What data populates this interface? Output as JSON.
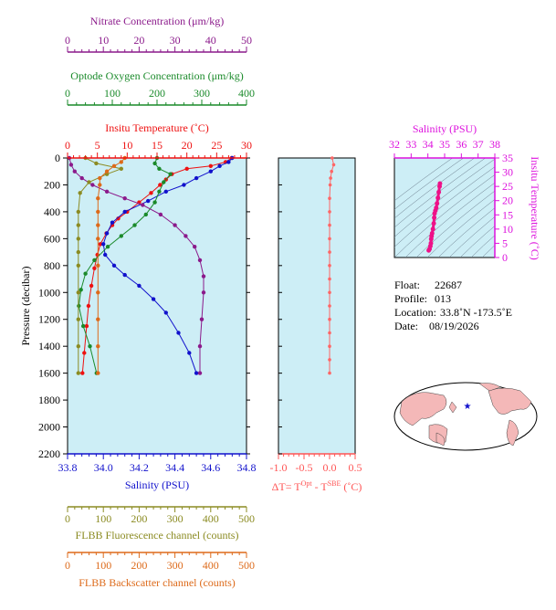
{
  "chart_data": [
    {
      "type": "line",
      "panel": "main-profile",
      "ylabel": "Pressure (decibar)",
      "ylim": [
        2200,
        0
      ],
      "yticks": [
        0,
        200,
        400,
        600,
        800,
        1000,
        1200,
        1400,
        1600,
        1800,
        2000,
        2200
      ],
      "background": "#cdeef6",
      "axes": {
        "nitrate": {
          "label": "Nitrate Concentration (μm/kg)",
          "range": [
            0,
            50
          ],
          "ticks": [
            0,
            10,
            20,
            30,
            40,
            50
          ],
          "color": "#8b1a8b"
        },
        "oxygen": {
          "label": "Optode Oxygen Concentration (μm/kg)",
          "range": [
            0,
            400
          ],
          "ticks": [
            0,
            100,
            200,
            300,
            400
          ],
          "color": "#1a8a2a"
        },
        "temperature": {
          "label": "Insitu Temperature (˚C)",
          "range": [
            0,
            30
          ],
          "ticks": [
            0,
            5,
            10,
            15,
            20,
            25,
            30
          ],
          "color": "#ee1111"
        },
        "salinity": {
          "label": "Salinity (PSU)",
          "range": [
            33.8,
            34.8
          ],
          "ticks": [
            "33.8",
            "34.0",
            "34.2",
            "34.4",
            "34.6",
            "34.8"
          ],
          "color": "#1111cc"
        },
        "fluorescence": {
          "label": "FLBB Fluorescence channel (counts)",
          "range": [
            0,
            500
          ],
          "ticks": [
            0,
            100,
            200,
            300,
            400,
            500
          ],
          "color": "#8b8b22"
        },
        "backscatter": {
          "label": "FLBB Backscatter channel (counts)",
          "range": [
            0,
            500
          ],
          "ticks": [
            0,
            100,
            200,
            300,
            400,
            500
          ],
          "color": "#dd6a1a"
        }
      },
      "series": [
        {
          "name": "Insitu Temperature",
          "axis": "temperature",
          "color": "#ee1111",
          "x": [
            27.5,
            26.5,
            24.0,
            20.0,
            17.5,
            16.5,
            15.5,
            14.0,
            12.0,
            10.0,
            8.5,
            7.5,
            6.5,
            5.5,
            5.0,
            4.5,
            4.0,
            3.5,
            3.2,
            2.8,
            2.5
          ],
          "y": [
            0,
            30,
            60,
            80,
            120,
            160,
            200,
            260,
            330,
            400,
            450,
            500,
            560,
            640,
            720,
            820,
            950,
            1100,
            1250,
            1450,
            1600
          ]
        },
        {
          "name": "Salinity",
          "axis": "salinity",
          "color": "#1111cc",
          "x": [
            34.72,
            34.7,
            34.65,
            34.6,
            34.52,
            34.45,
            34.35,
            34.25,
            34.12,
            34.05,
            34.02,
            34.0,
            34.01,
            34.06,
            34.12,
            34.2,
            34.28,
            34.35,
            34.42,
            34.48,
            34.52
          ],
          "y": [
            0,
            30,
            60,
            100,
            150,
            200,
            250,
            320,
            400,
            480,
            560,
            640,
            720,
            800,
            870,
            950,
            1050,
            1150,
            1300,
            1450,
            1600
          ]
        },
        {
          "name": "Optode Oxygen Concentration",
          "axis": "oxygen",
          "color": "#1a8a2a",
          "x": [
            200,
            195,
            205,
            230,
            215,
            205,
            195,
            175,
            150,
            120,
            90,
            60,
            40,
            30,
            25,
            35,
            50,
            65
          ],
          "y": [
            0,
            40,
            80,
            120,
            180,
            250,
            330,
            420,
            500,
            580,
            660,
            760,
            860,
            980,
            1100,
            1250,
            1400,
            1600
          ]
        },
        {
          "name": "Nitrate Concentration",
          "axis": "nitrate",
          "color": "#8b1a8b",
          "x": [
            0.5,
            1,
            2,
            4,
            7,
            11,
            16,
            21,
            26,
            30,
            33,
            35.5,
            37,
            38,
            38,
            37.5,
            37,
            37
          ],
          "y": [
            0,
            50,
            100,
            150,
            200,
            250,
            300,
            350,
            420,
            500,
            580,
            660,
            760,
            880,
            1000,
            1200,
            1400,
            1600
          ]
        },
        {
          "name": "FLBB Fluorescence channel",
          "axis": "fluorescence",
          "color": "#8b8b22",
          "x": [
            50,
            80,
            150,
            110,
            60,
            35,
            30,
            30,
            30,
            30,
            30,
            30,
            30,
            30,
            30
          ],
          "y": [
            0,
            40,
            80,
            120,
            180,
            260,
            400,
            500,
            600,
            700,
            800,
            1000,
            1200,
            1400,
            1600
          ]
        },
        {
          "name": "FLBB Backscatter channel",
          "axis": "backscatter",
          "color": "#dd6a1a",
          "x": [
            160,
            150,
            130,
            110,
            90,
            90,
            85,
            85,
            85,
            85,
            85,
            85,
            85,
            85,
            85
          ],
          "y": [
            0,
            30,
            60,
            100,
            150,
            200,
            300,
            400,
            500,
            600,
            800,
            1000,
            1200,
            1400,
            1600
          ]
        }
      ]
    },
    {
      "type": "scatter",
      "panel": "delta-temperature",
      "xlabel": "ΔT= T",
      "xlabel_sup1": "Opt",
      "xlabel_mid": " - T",
      "xlabel_sup2": "SBE",
      "xlabel_tail": " (˚C)",
      "xlim": [
        -1.0,
        0.5
      ],
      "xticks": [
        "-1.0",
        "-0.5",
        "0.0",
        "0.5"
      ],
      "color": "#ff6666",
      "x": [
        0.05,
        0.08,
        0.04,
        0.02,
        0.01,
        0.0,
        0.0,
        0.0,
        0.0,
        0.0,
        0.0,
        0.0,
        0.0,
        0.0,
        0.0,
        0.0,
        0.0,
        0.0,
        0.0
      ],
      "y": [
        0,
        50,
        100,
        150,
        200,
        300,
        400,
        500,
        600,
        700,
        800,
        900,
        1000,
        1100,
        1200,
        1300,
        1400,
        1500,
        1600
      ]
    },
    {
      "type": "scatter",
      "panel": "ts-diagram",
      "title": "Salinity (PSU)",
      "ylabel": "Insitu Temperature (˚C)",
      "xlim": [
        32,
        38
      ],
      "ylim": [
        0,
        35
      ],
      "xticks": [
        32,
        33,
        34,
        35,
        36,
        37,
        38
      ],
      "yticks": [
        0,
        5,
        10,
        15,
        20,
        25,
        30,
        35
      ],
      "color": "#ee1188",
      "x": [
        34.05,
        34.1,
        34.15,
        34.18,
        34.2,
        34.22,
        34.25,
        34.3,
        34.35,
        34.38,
        34.4,
        34.45,
        34.5,
        34.55,
        34.6,
        34.65,
        34.7,
        34.72
      ],
      "y": [
        2.5,
        3.0,
        4.0,
        5.0,
        6.5,
        7.5,
        8.5,
        10.0,
        12.0,
        14.0,
        15.5,
        16.5,
        17.5,
        19.0,
        21.0,
        23.0,
        25.0,
        26.0
      ]
    }
  ],
  "info": {
    "float_label": "Float:",
    "float_value": "22687",
    "profile_label": "Profile:",
    "profile_value": "013",
    "location_label": "Location:",
    "location_value": "33.8˚N  -173.5˚E",
    "date_label": "Date:",
    "date_value": "08/19/2026"
  },
  "map": {
    "marker_symbol": "★",
    "marker_color": "#1111cc",
    "land_color": "#f4b8b8",
    "ocean_color": "#ffffff"
  }
}
